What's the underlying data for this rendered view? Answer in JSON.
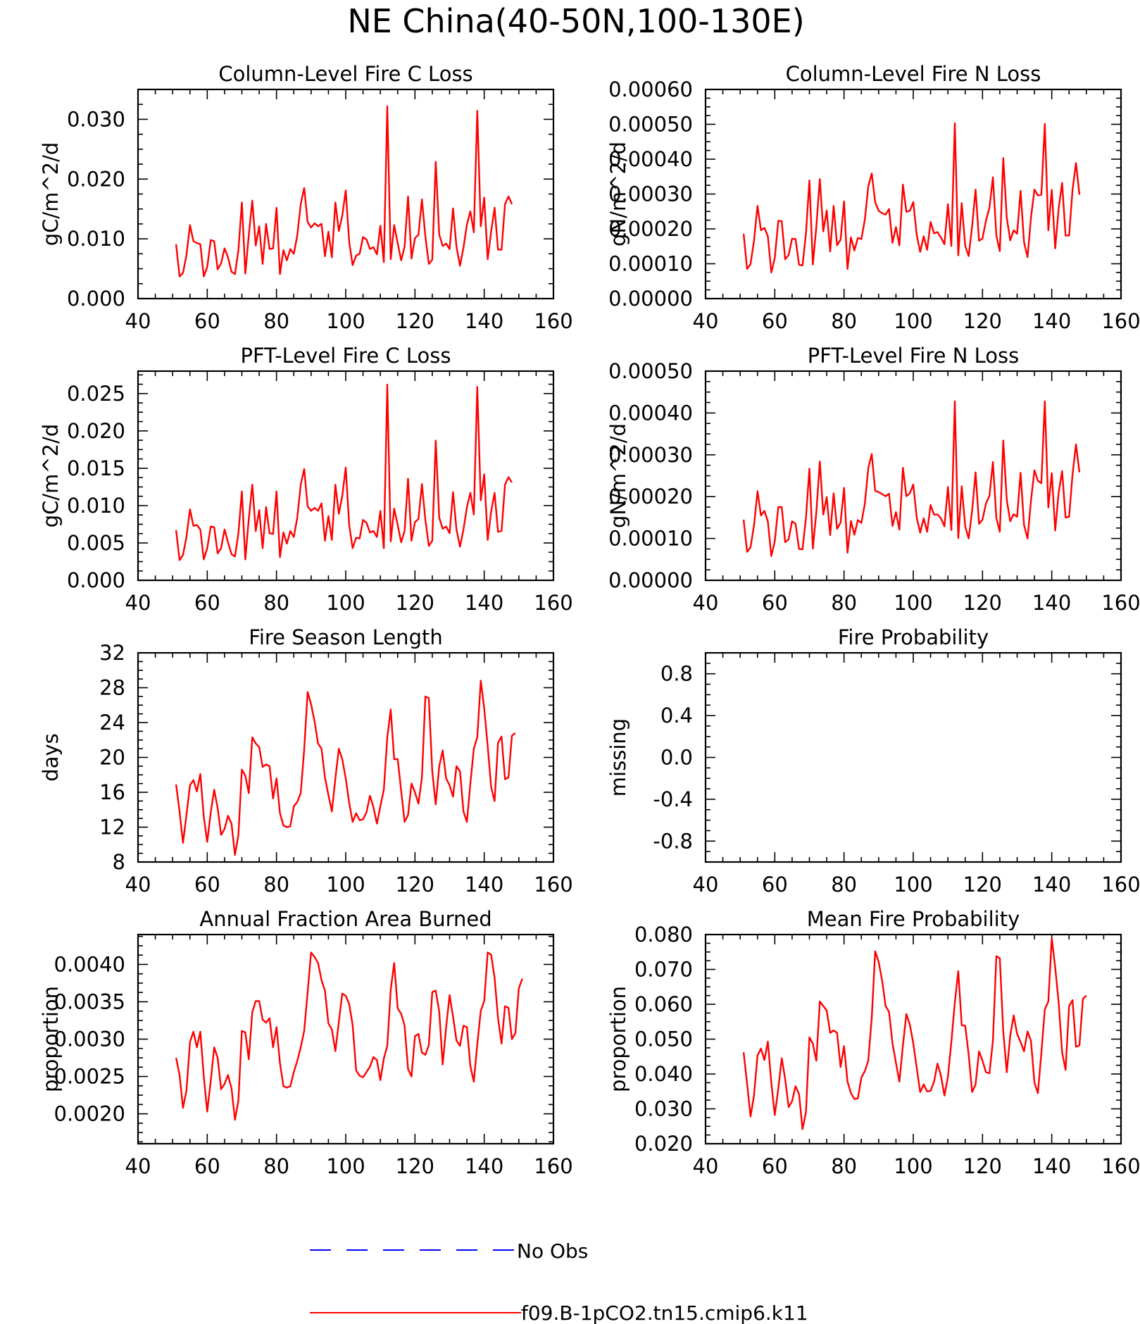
{
  "figure_title": "NE China(40-50N,100-130E)",
  "colors": {
    "model": "#ff0000",
    "obs": "#0000ff",
    "axis": "#000000"
  },
  "legend": {
    "obs_label": "No Obs",
    "model_label": "f09.B-1pCO2.tn15.cmip6.k11"
  },
  "chart_data": [
    {
      "type": "line",
      "title": "Column-Level Fire C Loss",
      "ylabel": "gC/m^2/d",
      "xlim": [
        40,
        160
      ],
      "ylim": [
        0,
        0.035
      ],
      "xticks": [
        40,
        60,
        80,
        100,
        120,
        140,
        160
      ],
      "yticks": [
        "0.000",
        "0.010",
        "0.020",
        "0.030"
      ],
      "ytick_values": [
        0,
        0.01,
        0.02,
        0.03
      ],
      "series": [
        {
          "x0": 51,
          "values": [
            0.0091,
            0.0037,
            0.0043,
            0.0073,
            0.0123,
            0.0096,
            0.0093,
            0.0091,
            0.0037,
            0.0053,
            0.0098,
            0.0096,
            0.0049,
            0.0059,
            0.0084,
            0.0069,
            0.0045,
            0.0041,
            0.0081,
            0.0161,
            0.0042,
            0.0106,
            0.0164,
            0.0089,
            0.0121,
            0.0058,
            0.0125,
            0.0083,
            0.0084,
            0.0152,
            0.0041,
            0.0081,
            0.0064,
            0.0083,
            0.0075,
            0.0106,
            0.0158,
            0.0185,
            0.0128,
            0.0119,
            0.0126,
            0.0121,
            0.0125,
            0.0071,
            0.0112,
            0.0069,
            0.0161,
            0.0113,
            0.0139,
            0.0181,
            0.0095,
            0.0056,
            0.0072,
            0.0075,
            0.0103,
            0.0099,
            0.0083,
            0.0086,
            0.0074,
            0.0122,
            0.0061,
            0.0322,
            0.0066,
            0.0123,
            0.0093,
            0.0064,
            0.0087,
            0.0171,
            0.0067,
            0.0101,
            0.0107,
            0.0166,
            0.0104,
            0.0058,
            0.0065,
            0.0229,
            0.0107,
            0.0088,
            0.0092,
            0.0083,
            0.0151,
            0.0087,
            0.0055,
            0.0085,
            0.0124,
            0.0146,
            0.0111,
            0.0314,
            0.0121,
            0.0169,
            0.0066,
            0.0112,
            0.0152,
            0.0082,
            0.0082,
            0.0158,
            0.0171,
            0.0158
          ]
        }
      ]
    },
    {
      "type": "line",
      "title": "Column-Level Fire N Loss",
      "ylabel": "gN/m^2/d",
      "xlim": [
        40,
        160
      ],
      "ylim": [
        0,
        0.0006
      ],
      "xticks": [
        40,
        60,
        80,
        100,
        120,
        140,
        160
      ],
      "yticks": [
        "0.00000",
        "0.00010",
        "0.00020",
        "0.00030",
        "0.00040",
        "0.00050",
        "0.00060"
      ],
      "ytick_values": [
        0,
        0.0001,
        0.0002,
        0.0003,
        0.0004,
        0.0005,
        0.0006
      ],
      "series": [
        {
          "x0": 51,
          "values": [
            0.000186,
            8.5e-05,
            9.9e-05,
            0.000166,
            0.000266,
            0.000196,
            0.000203,
            0.000179,
            7.5e-05,
            0.000116,
            0.000223,
            0.000222,
            0.000113,
            0.000125,
            0.000172,
            0.000171,
            9.7e-05,
            9.5e-05,
            0.000187,
            0.000339,
            9.8e-05,
            0.000205,
            0.000343,
            0.000193,
            0.000253,
            0.000135,
            0.000266,
            0.000153,
            0.000169,
            0.000279,
            8.5e-05,
            0.000176,
            0.000138,
            0.000174,
            0.000171,
            0.000226,
            0.000321,
            0.000359,
            0.000277,
            0.000252,
            0.000245,
            0.000241,
            0.000257,
            0.00016,
            0.000205,
            0.000153,
            0.000327,
            0.000249,
            0.000252,
            0.000277,
            0.000183,
            0.000134,
            0.000179,
            0.00014,
            0.00022,
            0.000187,
            0.000191,
            0.000175,
            0.000156,
            0.000271,
            0.000151,
            0.000503,
            0.000124,
            0.000274,
            0.000151,
            0.000122,
            0.000208,
            0.000313,
            0.000166,
            0.000172,
            0.000224,
            0.000261,
            0.000348,
            0.000181,
            0.000136,
            0.000403,
            0.000232,
            0.000167,
            0.000196,
            0.000186,
            0.000309,
            0.000162,
            0.000119,
            0.000233,
            0.000313,
            0.000296,
            0.000298,
            0.000501,
            0.000196,
            0.000312,
            0.000144,
            0.000259,
            0.000332,
            0.000181,
            0.000181,
            0.000312,
            0.000389,
            0.000298
          ]
        }
      ]
    },
    {
      "type": "line",
      "title": "PFT-Level Fire C Loss",
      "ylabel": "gC/m^2/d",
      "xlim": [
        40,
        160
      ],
      "ylim": [
        0,
        0.028
      ],
      "xticks": [
        40,
        60,
        80,
        100,
        120,
        140,
        160
      ],
      "yticks": [
        "0.000",
        "0.005",
        "0.010",
        "0.015",
        "0.020",
        "0.025"
      ],
      "ytick_values": [
        0,
        0.005,
        0.01,
        0.015,
        0.02,
        0.025
      ],
      "series": [
        {
          "x0": 51,
          "values": [
            0.0067,
            0.0027,
            0.0034,
            0.0058,
            0.0095,
            0.0073,
            0.0074,
            0.0068,
            0.0028,
            0.0043,
            0.0072,
            0.0071,
            0.0036,
            0.0043,
            0.0068,
            0.0051,
            0.0035,
            0.0032,
            0.0063,
            0.0119,
            0.0028,
            0.0082,
            0.0128,
            0.0066,
            0.0094,
            0.0043,
            0.0098,
            0.0063,
            0.0062,
            0.0119,
            0.0031,
            0.0064,
            0.0049,
            0.0066,
            0.0058,
            0.0084,
            0.0128,
            0.0149,
            0.0099,
            0.0093,
            0.0097,
            0.0093,
            0.0103,
            0.0053,
            0.0086,
            0.0054,
            0.0128,
            0.0089,
            0.0113,
            0.0151,
            0.0074,
            0.0043,
            0.0057,
            0.0056,
            0.0081,
            0.0077,
            0.0064,
            0.0066,
            0.0058,
            0.0093,
            0.0043,
            0.0262,
            0.0052,
            0.0096,
            0.0074,
            0.0051,
            0.0066,
            0.0136,
            0.0053,
            0.0078,
            0.0082,
            0.0129,
            0.0081,
            0.0046,
            0.0053,
            0.0187,
            0.0084,
            0.0069,
            0.0072,
            0.0063,
            0.0118,
            0.0068,
            0.0045,
            0.0068,
            0.0098,
            0.0117,
            0.0088,
            0.0259,
            0.0107,
            0.0142,
            0.0054,
            0.0092,
            0.0117,
            0.0065,
            0.0066,
            0.0128,
            0.0138,
            0.0131
          ]
        }
      ]
    },
    {
      "type": "line",
      "title": "PFT-Level Fire N Loss",
      "ylabel": "gN/m^2/d",
      "xlim": [
        40,
        160
      ],
      "ylim": [
        0,
        0.0005
      ],
      "xticks": [
        40,
        60,
        80,
        100,
        120,
        140,
        160
      ],
      "yticks": [
        "0.00000",
        "0.00010",
        "0.00020",
        "0.00030",
        "0.00040",
        "0.00050"
      ],
      "ytick_values": [
        0,
        0.0001,
        0.0002,
        0.0003,
        0.0004,
        0.0005
      ],
      "series": [
        {
          "x0": 51,
          "values": [
            0.000145,
            6.8e-05,
            7.9e-05,
            0.000131,
            0.000213,
            0.000155,
            0.000166,
            0.000141,
            5.8e-05,
            9.3e-05,
            0.000175,
            0.000175,
            9.1e-05,
            9.8e-05,
            0.000141,
            0.000135,
            7.5e-05,
            7.4e-05,
            0.000149,
            0.000267,
            7.6e-05,
            0.000162,
            0.000284,
            0.000157,
            0.000199,
            0.000108,
            0.000208,
            0.000123,
            0.000138,
            0.000221,
            6.6e-05,
            0.000142,
            0.000109,
            0.000144,
            0.000137,
            0.000183,
            0.000268,
            0.000302,
            0.000214,
            0.000211,
            0.000206,
            0.000201,
            0.000207,
            0.00013,
            0.000163,
            0.000121,
            0.000269,
            0.000201,
            0.000208,
            0.000229,
            0.00015,
            0.000114,
            0.000148,
            0.000116,
            0.00018,
            0.000157,
            0.000157,
            0.000148,
            0.000129,
            0.000223,
            0.00012,
            0.000428,
            0.000101,
            0.000225,
            0.000129,
            0.0001,
            0.000167,
            0.000258,
            0.000135,
            0.000145,
            0.000184,
            0.000202,
            0.000283,
            0.000149,
            0.000116,
            0.000334,
            0.000192,
            0.000141,
            0.000158,
            0.000152,
            0.000257,
            0.000132,
            0.0001,
            0.000191,
            0.000263,
            0.000238,
            0.000232,
            0.000428,
            0.000174,
            0.000256,
            0.000119,
            0.00021,
            0.000261,
            0.00015,
            0.000152,
            0.000253,
            0.000325,
            0.000258
          ]
        }
      ]
    },
    {
      "type": "line",
      "title": "Fire Season Length",
      "ylabel": "days",
      "xlim": [
        40,
        160
      ],
      "ylim": [
        8,
        32
      ],
      "xticks": [
        40,
        60,
        80,
        100,
        120,
        140,
        160
      ],
      "yticks": [
        "8",
        "12",
        "16",
        "20",
        "24",
        "28",
        "32"
      ],
      "ytick_values": [
        8,
        12,
        16,
        20,
        24,
        28,
        32
      ],
      "series": [
        {
          "x0": 51,
          "values": [
            16.9,
            13.8,
            10.2,
            13.4,
            16.8,
            17.4,
            16.1,
            18.1,
            13.2,
            10.3,
            13.7,
            16.3,
            14.2,
            11.1,
            11.8,
            13.3,
            12.4,
            8.8,
            11.1,
            18.6,
            17.9,
            15.9,
            22.3,
            21.6,
            21.2,
            18.9,
            19.2,
            19.0,
            15.3,
            17.6,
            13.6,
            12.2,
            12.0,
            12.1,
            14.4,
            14.9,
            15.9,
            20.9,
            27.5,
            26.1,
            24.1,
            21.6,
            21.0,
            17.7,
            15.7,
            13.8,
            17.6,
            21.0,
            19.8,
            17.6,
            14.8,
            12.6,
            13.6,
            12.8,
            12.9,
            13.7,
            15.6,
            14.3,
            12.4,
            14.4,
            16.3,
            22.3,
            25.5,
            19.8,
            19.8,
            16.2,
            12.6,
            13.4,
            17.0,
            16.0,
            14.7,
            17.7,
            27.0,
            26.8,
            18.4,
            14.6,
            19.0,
            20.8,
            17.6,
            16.8,
            15.5,
            19.0,
            18.4,
            13.8,
            12.6,
            17.0,
            21.0,
            22.3,
            28.8,
            25.6,
            21.3,
            16.6,
            15.0,
            21.7,
            22.4,
            17.5,
            17.7,
            22.5,
            22.8
          ]
        }
      ]
    },
    {
      "type": "line",
      "title": "Fire Probability",
      "ylabel": "missing",
      "xlim": [
        40,
        160
      ],
      "ylim": [
        -1,
        1
      ],
      "xticks": [
        40,
        60,
        80,
        100,
        120,
        140,
        160
      ],
      "yticks": [
        "-0.8",
        "-0.4",
        "0.0",
        "0.4",
        "0.8"
      ],
      "ytick_values": [
        -0.8,
        -0.4,
        0,
        0.4,
        0.8
      ],
      "series": []
    },
    {
      "type": "line",
      "title": "Annual Fraction Area Burned",
      "ylabel": "proportion",
      "xlim": [
        40,
        160
      ],
      "ylim": [
        0.0016,
        0.0044
      ],
      "xticks": [
        40,
        60,
        80,
        100,
        120,
        140,
        160
      ],
      "yticks": [
        "0.0020",
        "0.0025",
        "0.0030",
        "0.0035",
        "0.0040"
      ],
      "ytick_values": [
        0.002,
        0.0025,
        0.003,
        0.0035,
        0.004
      ],
      "series": [
        {
          "x0": 51,
          "values": [
            0.00275,
            0.00252,
            0.00208,
            0.00231,
            0.00296,
            0.0031,
            0.00289,
            0.0031,
            0.0025,
            0.00203,
            0.00244,
            0.00289,
            0.00275,
            0.00233,
            0.0024,
            0.00252,
            0.00234,
            0.00192,
            0.00218,
            0.00311,
            0.00309,
            0.00273,
            0.00336,
            0.00351,
            0.00351,
            0.00326,
            0.00322,
            0.00328,
            0.00289,
            0.00316,
            0.00268,
            0.00237,
            0.00235,
            0.00237,
            0.00256,
            0.00271,
            0.00289,
            0.00311,
            0.00363,
            0.00416,
            0.0041,
            0.00402,
            0.00379,
            0.00365,
            0.00321,
            0.00313,
            0.00284,
            0.00323,
            0.00361,
            0.00358,
            0.00347,
            0.00319,
            0.00258,
            0.00251,
            0.00249,
            0.00256,
            0.00263,
            0.00276,
            0.00272,
            0.00245,
            0.00274,
            0.00291,
            0.00366,
            0.00402,
            0.00341,
            0.00334,
            0.00318,
            0.0026,
            0.0025,
            0.00304,
            0.00307,
            0.00282,
            0.00279,
            0.00292,
            0.00363,
            0.00365,
            0.00337,
            0.00266,
            0.00316,
            0.00359,
            0.0033,
            0.00298,
            0.00291,
            0.00318,
            0.00316,
            0.00264,
            0.00243,
            0.00293,
            0.00338,
            0.00351,
            0.00416,
            0.00413,
            0.00382,
            0.00328,
            0.00294,
            0.00344,
            0.00342,
            0.003,
            0.00308,
            0.00368,
            0.00381
          ]
        }
      ]
    },
    {
      "type": "line",
      "title": "Mean Fire Probability",
      "ylabel": "proportion",
      "xlim": [
        40,
        160
      ],
      "ylim": [
        0.02,
        0.08
      ],
      "xticks": [
        40,
        60,
        80,
        100,
        120,
        140,
        160
      ],
      "yticks": [
        "0.020",
        "0.030",
        "0.040",
        "0.050",
        "0.060",
        "0.070",
        "0.080"
      ],
      "ytick_values": [
        0.02,
        0.03,
        0.04,
        0.05,
        0.06,
        0.07,
        0.08
      ],
      "series": [
        {
          "x0": 51,
          "values": [
            0.0462,
            0.0372,
            0.0278,
            0.0338,
            0.0453,
            0.0473,
            0.044,
            0.0493,
            0.0375,
            0.0282,
            0.0358,
            0.0445,
            0.0385,
            0.0305,
            0.0322,
            0.0365,
            0.0342,
            0.0242,
            0.029,
            0.0505,
            0.0487,
            0.0438,
            0.0608,
            0.0595,
            0.0582,
            0.0518,
            0.0525,
            0.0518,
            0.042,
            0.048,
            0.0378,
            0.0345,
            0.0328,
            0.033,
            0.039,
            0.0408,
            0.0438,
            0.056,
            0.0752,
            0.0722,
            0.0668,
            0.0595,
            0.0578,
            0.0488,
            0.0432,
            0.0378,
            0.0482,
            0.0572,
            0.0542,
            0.0488,
            0.0418,
            0.0348,
            0.037,
            0.035,
            0.0352,
            0.0378,
            0.043,
            0.0395,
            0.0338,
            0.0392,
            0.0492,
            0.0605,
            0.0695,
            0.054,
            0.0538,
            0.0455,
            0.0348,
            0.037,
            0.0465,
            0.0438,
            0.0405,
            0.0402,
            0.0495,
            0.0738,
            0.0732,
            0.0522,
            0.0405,
            0.051,
            0.0568,
            0.0515,
            0.0492,
            0.0465,
            0.0522,
            0.0495,
            0.0375,
            0.0345,
            0.046,
            0.0585,
            0.0608,
            0.079,
            0.0705,
            0.0605,
            0.0462,
            0.0412,
            0.0595,
            0.0612,
            0.0478,
            0.0482,
            0.0615,
            0.0625
          ]
        }
      ]
    }
  ]
}
